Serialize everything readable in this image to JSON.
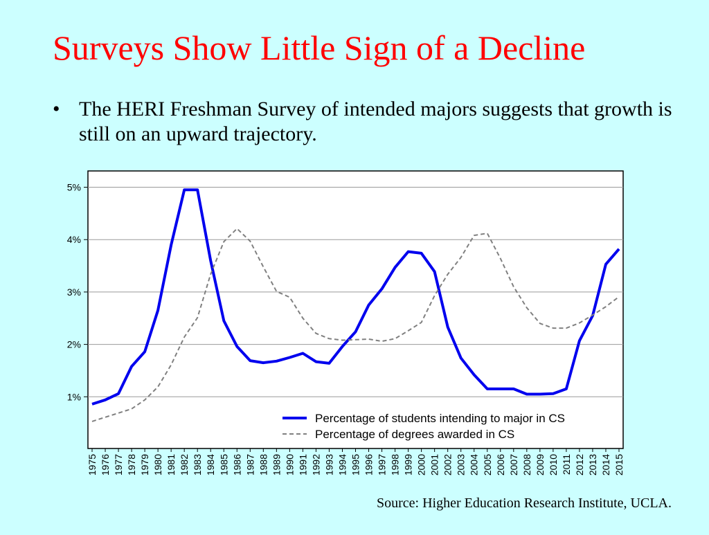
{
  "slide": {
    "title": "Surveys Show Little Sign of a Decline",
    "bullet_text": "The HERI Freshman Survey of intended majors suggests that growth is still on an upward trajectory.",
    "bullet_symbol": "•",
    "source": "Source: Higher Education Research Institute, UCLA."
  },
  "colors": {
    "background": "#ccffff",
    "title": "#ff0000",
    "series_intending": "#0000ee",
    "series_degrees": "#808080",
    "plot_background": "#ffffff",
    "gridline": "#999999"
  },
  "chart_data": {
    "type": "line",
    "title": "",
    "xlabel": "",
    "ylabel": "",
    "ylim": [
      0,
      5.3
    ],
    "yticks": [
      1,
      2,
      3,
      4,
      5
    ],
    "ytick_labels": [
      "1%",
      "2%",
      "3%",
      "4%",
      "5%"
    ],
    "grid": true,
    "legend_position": "bottom-right",
    "categories": [
      "1975",
      "1976",
      "1977",
      "1978",
      "1979",
      "1980",
      "1981",
      "1982",
      "1983",
      "1984",
      "1985",
      "1986",
      "1987",
      "1988",
      "1989",
      "1990",
      "1991",
      "1992",
      "1993",
      "1994",
      "1995",
      "1996",
      "1997",
      "1998",
      "1999",
      "2000",
      "2001",
      "2002",
      "2003",
      "2004",
      "2005",
      "2006",
      "2007",
      "2008",
      "2009",
      "2010",
      "2011",
      "2012",
      "2013",
      "2014",
      "2015"
    ],
    "series": [
      {
        "name": "Percentage of students intending to major in CS",
        "style": "solid",
        "values": [
          0.86,
          0.94,
          1.06,
          1.58,
          1.86,
          2.65,
          3.9,
          4.95,
          4.95,
          3.6,
          2.45,
          1.96,
          1.69,
          1.65,
          1.68,
          1.75,
          1.83,
          1.67,
          1.64,
          1.96,
          2.24,
          2.75,
          3.06,
          3.47,
          3.77,
          3.74,
          3.39,
          2.33,
          1.74,
          1.42,
          1.15,
          1.15,
          1.15,
          1.05,
          1.05,
          1.06,
          1.15,
          2.07,
          2.55,
          3.53,
          3.82
        ]
      },
      {
        "name": "Percentage of degrees awarded in CS",
        "style": "dashed",
        "values": [
          0.53,
          0.61,
          0.69,
          0.77,
          0.94,
          1.19,
          1.61,
          2.14,
          2.51,
          3.34,
          3.96,
          4.21,
          3.97,
          3.48,
          3.01,
          2.9,
          2.5,
          2.21,
          2.11,
          2.08,
          2.09,
          2.1,
          2.06,
          2.11,
          2.26,
          2.42,
          2.93,
          3.34,
          3.66,
          4.08,
          4.12,
          3.64,
          3.1,
          2.7,
          2.4,
          2.31,
          2.31,
          2.41,
          2.56,
          2.72,
          2.91
        ]
      }
    ]
  }
}
